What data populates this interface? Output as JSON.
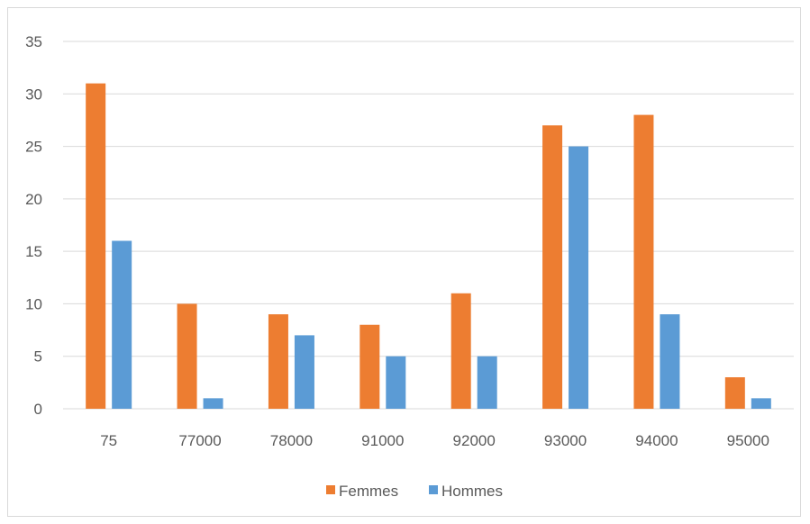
{
  "chart_data": {
    "type": "bar",
    "title": "",
    "xlabel": "",
    "ylabel": "",
    "categories": [
      "75",
      "77000",
      "78000",
      "91000",
      "92000",
      "93000",
      "94000",
      "95000"
    ],
    "series": [
      {
        "name": "Femmes",
        "color": "#ED7D31",
        "values": [
          31,
          10,
          9,
          8,
          11,
          27,
          28,
          3
        ]
      },
      {
        "name": "Hommes",
        "color": "#5B9BD5",
        "values": [
          16,
          1,
          7,
          5,
          5,
          25,
          9,
          1
        ]
      }
    ],
    "ylim": [
      0,
      35
    ],
    "yticks": [
      0,
      5,
      10,
      15,
      20,
      25,
      30,
      35
    ],
    "grid": true,
    "legend_position": "bottom"
  }
}
